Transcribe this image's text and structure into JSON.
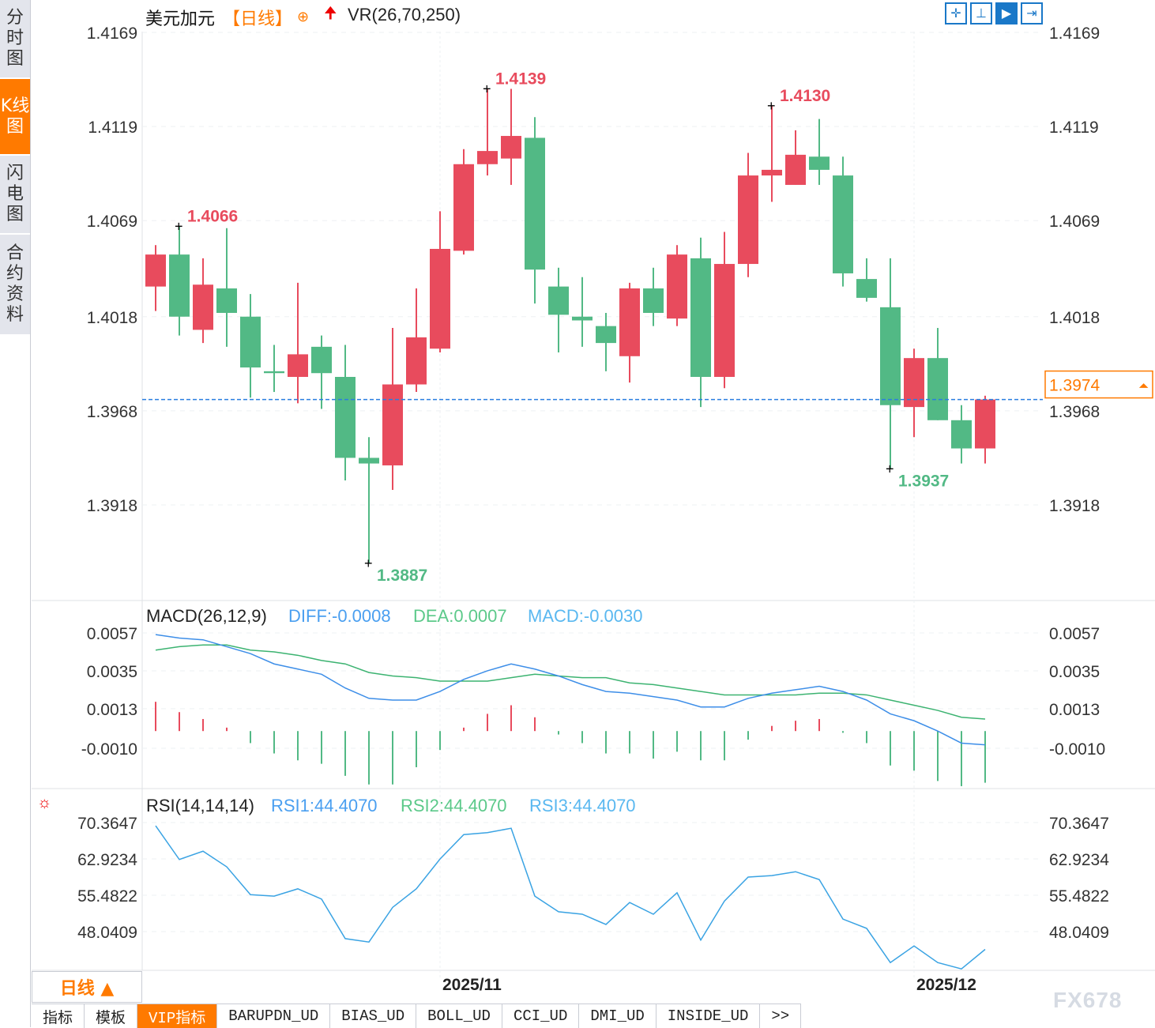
{
  "sidebar": {
    "items": [
      {
        "label": "分时图",
        "active": false
      },
      {
        "label": "K线图",
        "active": true
      },
      {
        "label": "闪电图",
        "active": false
      },
      {
        "label": "合约资料",
        "active": false
      }
    ]
  },
  "header": {
    "symbol": "美元加元",
    "period": "【日线】",
    "vr_label": "VR(26,70,250)",
    "icons": [
      "crosshair-icon",
      "up-arrow-icon"
    ]
  },
  "toolbar": {
    "icons": [
      "crosshair-icon",
      "range-icon",
      "play-icon",
      "scroll-right-icon"
    ]
  },
  "colors": {
    "up": "#e84b5d",
    "down": "#52b985",
    "accent": "#ff7a00",
    "diff": "#3d8ee8",
    "dea": "#3cb371",
    "rsi": "#3aa3e3",
    "grid": "#e4e6ea"
  },
  "chart_data": [
    {
      "type": "candlestick",
      "yticks": [
        "1.4169",
        "1.4119",
        "1.4069",
        "1.4018",
        "1.3968",
        "1.3918"
      ],
      "ylim": [
        1.3918,
        1.4169
      ],
      "ohlc": [
        [
          1.4034,
          1.4056,
          1.4021,
          1.4051
        ],
        [
          1.4051,
          1.4066,
          1.4008,
          1.4018
        ],
        [
          1.4011,
          1.4049,
          1.4004,
          1.4035
        ],
        [
          1.4033,
          1.4065,
          1.4002,
          1.402
        ],
        [
          1.4018,
          1.403,
          1.3975,
          1.3991
        ],
        [
          1.3989,
          1.4003,
          1.3978,
          1.3988
        ],
        [
          1.3986,
          1.4036,
          1.3972,
          1.3998
        ],
        [
          1.4002,
          1.4008,
          1.3969,
          1.3988
        ],
        [
          1.3986,
          1.4003,
          1.3931,
          1.3943
        ],
        [
          1.3943,
          1.3954,
          1.3887,
          1.394
        ],
        [
          1.3939,
          1.4012,
          1.3926,
          1.3982
        ],
        [
          1.3982,
          1.4033,
          1.3978,
          1.4007
        ],
        [
          1.4001,
          1.4074,
          1.3999,
          1.4054
        ],
        [
          1.4053,
          1.4107,
          1.4051,
          1.4099
        ],
        [
          1.4099,
          1.4139,
          1.4093,
          1.4106
        ],
        [
          1.4102,
          1.4139,
          1.4088,
          1.4114
        ],
        [
          1.4113,
          1.4124,
          1.4025,
          1.4043
        ],
        [
          1.4034,
          1.4044,
          1.3999,
          1.4019
        ],
        [
          1.4018,
          1.4039,
          1.4002,
          1.4016
        ],
        [
          1.4013,
          1.402,
          1.3989,
          1.4004
        ],
        [
          1.3997,
          1.4036,
          1.3983,
          1.4033
        ],
        [
          1.4033,
          1.4044,
          1.4013,
          1.402
        ],
        [
          1.4017,
          1.4056,
          1.4013,
          1.4051
        ],
        [
          1.4049,
          1.406,
          1.397,
          1.3986
        ],
        [
          1.3986,
          1.4063,
          1.398,
          1.4046
        ],
        [
          1.4046,
          1.4105,
          1.4039,
          1.4093
        ],
        [
          1.4093,
          1.413,
          1.4079,
          1.4096
        ],
        [
          1.4088,
          1.4117,
          1.4088,
          1.4104
        ],
        [
          1.4103,
          1.4123,
          1.4088,
          1.4096
        ],
        [
          1.4093,
          1.4103,
          1.4034,
          1.4041
        ],
        [
          1.4038,
          1.4049,
          1.4026,
          1.4028
        ],
        [
          1.4023,
          1.4049,
          1.3937,
          1.3971
        ],
        [
          1.397,
          1.4001,
          1.3954,
          1.3996
        ],
        [
          1.3996,
          1.4012,
          1.3963,
          1.3963
        ],
        [
          1.3963,
          1.3971,
          1.394,
          1.3948
        ],
        [
          1.3948,
          1.3976,
          1.394,
          1.3974
        ]
      ],
      "annotations": [
        {
          "index": 1,
          "value": "1.4066",
          "kind": "high"
        },
        {
          "index": 14,
          "value": "1.4139",
          "kind": "high"
        },
        {
          "index": 26,
          "value": "1.4130",
          "kind": "high"
        },
        {
          "index": 9,
          "value": "1.3887",
          "kind": "low"
        },
        {
          "index": 31,
          "value": "1.3937",
          "kind": "low"
        }
      ],
      "current_price": "1.3974",
      "xticks": [
        {
          "index": 12,
          "label": "2025/11"
        },
        {
          "index": 32,
          "label": "2025/12"
        }
      ]
    },
    {
      "type": "macd",
      "title": "MACD(26,12,9)",
      "diff_label": "DIFF:-0.0008",
      "dea_label": "DEA:0.0007",
      "macd_label": "MACD:-0.0030",
      "yticks": [
        "0.0057",
        "0.0035",
        "0.0013",
        "-0.0010"
      ],
      "ylim": [
        -0.001,
        0.0057
      ],
      "diff": [
        0.0056,
        0.0054,
        0.0053,
        0.0049,
        0.0045,
        0.0039,
        0.0036,
        0.0033,
        0.0025,
        0.0019,
        0.0018,
        0.0018,
        0.0023,
        0.003,
        0.0035,
        0.0039,
        0.0036,
        0.0032,
        0.0027,
        0.0023,
        0.0022,
        0.002,
        0.0018,
        0.0014,
        0.0014,
        0.0019,
        0.0022,
        0.0024,
        0.0026,
        0.0023,
        0.0018,
        0.001,
        0.0006,
        0.0,
        -0.0007,
        -0.0008
      ],
      "dea": [
        0.0047,
        0.0049,
        0.005,
        0.005,
        0.0047,
        0.0046,
        0.0044,
        0.0041,
        0.0039,
        0.0034,
        0.0032,
        0.0031,
        0.0029,
        0.0029,
        0.0029,
        0.0031,
        0.0033,
        0.0032,
        0.0031,
        0.0031,
        0.0028,
        0.0027,
        0.0025,
        0.0023,
        0.0021,
        0.0021,
        0.0021,
        0.0021,
        0.0022,
        0.0022,
        0.0021,
        0.0018,
        0.0015,
        0.0012,
        0.0008,
        0.0007
      ],
      "macd": [
        0.0017,
        0.0011,
        0.0007,
        0.0002,
        -0.0007,
        -0.0013,
        -0.0017,
        -0.0019,
        -0.0026,
        -0.0031,
        -0.0031,
        -0.0021,
        -0.0011,
        0.0002,
        0.001,
        0.0015,
        0.0008,
        -0.0002,
        -0.0007,
        -0.0013,
        -0.0013,
        -0.0016,
        -0.0012,
        -0.0017,
        -0.0017,
        -0.0005,
        0.0003,
        0.0006,
        0.0007,
        -0.0001,
        -0.0007,
        -0.002,
        -0.0023,
        -0.0029,
        -0.0032,
        -0.003
      ]
    },
    {
      "type": "line",
      "title": "RSI(14,14,14)",
      "rsi1_label": "RSI1:44.4070",
      "rsi2_label": "RSI2:44.4070",
      "rsi3_label": "RSI3:44.4070",
      "yticks": [
        "70.3647",
        "62.9234",
        "55.4822",
        "48.0409"
      ],
      "ylim": [
        48.0409,
        70.3647
      ],
      "values": [
        69.7,
        62.8,
        64.5,
        61.3,
        55.6,
        55.3,
        56.8,
        54.7,
        46.6,
        45.9,
        53.0,
        56.8,
        62.9,
        67.9,
        68.3,
        69.2,
        55.3,
        52.1,
        51.6,
        49.5,
        54.0,
        51.6,
        56.0,
        46.3,
        54.3,
        59.2,
        59.5,
        60.3,
        58.7,
        50.6,
        48.7,
        41.7,
        45.1,
        41.7,
        40.4,
        44.4
      ]
    }
  ],
  "period_button": {
    "label": "日线 ▲"
  },
  "tabs": [
    {
      "label": "指标"
    },
    {
      "label": "模板"
    },
    {
      "label": "VIP指标",
      "active": true
    },
    {
      "label": "BARUPDN_UD"
    },
    {
      "label": "BIAS_UD"
    },
    {
      "label": "BOLL_UD"
    },
    {
      "label": "CCI_UD"
    },
    {
      "label": "DMI_UD"
    },
    {
      "label": "INSIDE_UD"
    },
    {
      "label": ">>"
    }
  ],
  "watermark": "FX678"
}
